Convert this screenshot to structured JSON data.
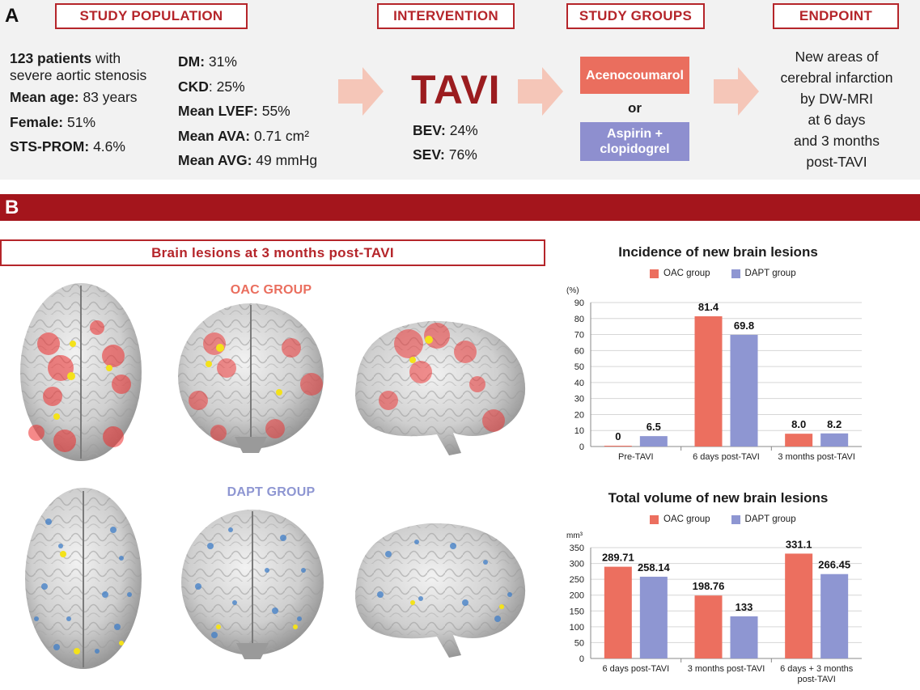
{
  "panel_a": {
    "letter": "A",
    "headers": {
      "study_population": "STUDY POPULATION",
      "intervention": "INTERVENTION",
      "study_groups": "STUDY GROUPS",
      "endpoint": "ENDPOINT"
    },
    "population_left": [
      {
        "bold": "123 patients",
        "rest": " with"
      },
      {
        "bold": "",
        "rest": "severe aortic stenosis"
      },
      {
        "bold": "Mean age:",
        "rest": " 83 years"
      },
      {
        "bold": "Female:",
        "rest": " 51%"
      },
      {
        "bold": "STS-PROM:",
        "rest": " 4.6%"
      }
    ],
    "population_right": [
      {
        "bold": "DM:",
        "rest": " 31%"
      },
      {
        "bold": "CKD",
        "rest": ": 25%"
      },
      {
        "bold": "Mean LVEF:",
        "rest": " 55%"
      },
      {
        "bold": "Mean AVA:",
        "rest": " 0.71 cm²"
      },
      {
        "bold": "Mean AVG:",
        "rest": " 49 mmHg"
      }
    ],
    "intervention": {
      "name": "TAVI",
      "lines": [
        {
          "bold": "BEV:",
          "rest": " 24%"
        },
        {
          "bold": "SEV:",
          "rest": " 76%"
        }
      ]
    },
    "groups": {
      "group1": "Acenocoumarol",
      "or": "or",
      "group2_line1": "Aspirin +",
      "group2_line2": "clopidogrel",
      "color1": "#ea6e5e",
      "color2": "#8e8fcf"
    },
    "endpoint_lines": [
      "New areas of",
      "cerebral infarction",
      "by DW-MRI",
      "at 6 days",
      "and 3 months",
      "post-TAVI"
    ]
  },
  "panel_b": {
    "letter": "B",
    "brain_header": "Brain lesions at 3 months post-TAVI",
    "oac_label": "OAC GROUP",
    "dapt_label": "DAPT GROUP",
    "oac_color": "#ea6e5e",
    "dapt_color": "#8e96d2"
  },
  "chart_data": [
    {
      "type": "bar",
      "title": "Incidence of new brain lesions",
      "ylabel": "(%)",
      "categories": [
        "Pre-TAVI",
        "6 days post-TAVI",
        "3 months post-TAVI"
      ],
      "series": [
        {
          "name": "OAC group",
          "values": [
            0,
            81.4,
            8.0
          ],
          "labels": [
            "0",
            "81.4",
            "8.0"
          ],
          "color": "#ec6f5f"
        },
        {
          "name": "DAPT group",
          "values": [
            6.5,
            69.8,
            8.2
          ],
          "labels": [
            "6.5",
            "69.8",
            "8.2"
          ],
          "color": "#8e96d2"
        }
      ],
      "ylim": [
        0,
        90
      ],
      "yticks": [
        0,
        10,
        20,
        30,
        40,
        50,
        60,
        70,
        80,
        90
      ],
      "grid": true,
      "legend": "top"
    },
    {
      "type": "bar",
      "title": "Total volume of new brain lesions",
      "ylabel": "mm³",
      "categories": [
        "6 days post-TAVI",
        "3 months post-TAVI",
        "6 days + 3 months post-TAVI"
      ],
      "series": [
        {
          "name": "OAC group",
          "values": [
            289.71,
            198.76,
            331.1
          ],
          "labels": [
            "289.71",
            "198.76",
            "331.1"
          ],
          "color": "#ec6f5f"
        },
        {
          "name": "DAPT group",
          "values": [
            258.14,
            133,
            266.45
          ],
          "labels": [
            "258.14",
            "133",
            "266.45"
          ],
          "color": "#8e96d2"
        }
      ],
      "ylim": [
        0,
        350
      ],
      "yticks": [
        0,
        50,
        100,
        150,
        200,
        250,
        300,
        350
      ],
      "grid": true,
      "legend": "top"
    }
  ]
}
